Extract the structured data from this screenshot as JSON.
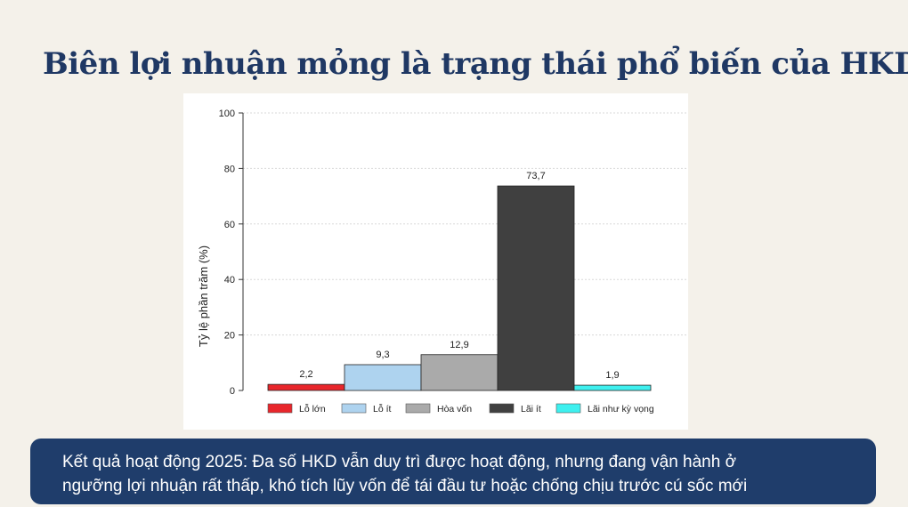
{
  "slide": {
    "title": "Biên lợi nhuận mỏng là trạng thái phổ biến của HKD",
    "caption_line1": "Kết quả hoạt động 2025: Đa số HKD vẫn duy trì được hoạt động, nhưng đang vận hành ở",
    "caption_line2": "ngưỡng lợi nhuận rất thấp, khó tích lũy vốn để tái đầu tư hoặc chống chịu trước cú sốc mới"
  },
  "chart_data": {
    "type": "bar",
    "categories": [
      "Lỗ lớn",
      "Lỗ ít",
      "Hòa vốn",
      "Lãi ít",
      "Lãi như kỳ vọng"
    ],
    "values": [
      2.2,
      9.3,
      12.9,
      73.7,
      1.9
    ],
    "value_labels": [
      "2,2",
      "9,3",
      "12,9",
      "73,7",
      "1,9"
    ],
    "colors": [
      "#e8262b",
      "#aed3ef",
      "#aaaaaa",
      "#404040",
      "#3ef0ef"
    ],
    "ylabel": "Tỷ lệ phần trăm (%)",
    "ylim": [
      0,
      100
    ],
    "yticks": [
      0,
      20,
      40,
      60,
      80,
      100
    ],
    "grid": true,
    "legend_position": "bottom"
  }
}
